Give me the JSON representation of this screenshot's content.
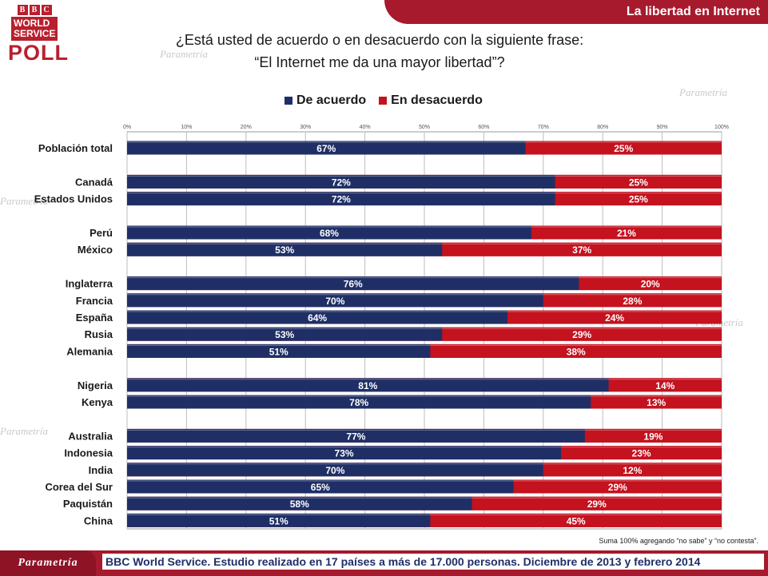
{
  "header": {
    "bbc_letters": [
      "B",
      "B",
      "C"
    ],
    "world_service": "WORLD SERVICE",
    "poll": "POLL",
    "section_title": "La libertad en Internet"
  },
  "question": {
    "line1": "¿Está usted de acuerdo o en desacuerdo con la siguiente frase:",
    "line2": "“El Internet me da una mayor libertad”?"
  },
  "colors": {
    "agree": "#1f2f66",
    "disagree": "#c4121f",
    "accent": "#a7192c"
  },
  "chart_data": {
    "type": "bar",
    "orientation": "horizontal",
    "stacked": true,
    "xlim": [
      0,
      100
    ],
    "x_ticks": [
      "0%",
      "10%",
      "20%",
      "30%",
      "40%",
      "50%",
      "60%",
      "70%",
      "80%",
      "90%",
      "100%"
    ],
    "legend": {
      "placement": "top",
      "entries": [
        "De acuerdo",
        "En desacuerdo"
      ]
    },
    "grid": true,
    "groups": [
      [
        {
          "label": "Población total",
          "agree": 67,
          "disagree": 25
        }
      ],
      [
        {
          "label": "Canadá",
          "agree": 72,
          "disagree": 25
        },
        {
          "label": "Estados Unidos",
          "agree": 72,
          "disagree": 25
        }
      ],
      [
        {
          "label": "Perú",
          "agree": 68,
          "disagree": 21
        },
        {
          "label": "México",
          "agree": 53,
          "disagree": 37
        }
      ],
      [
        {
          "label": "Inglaterra",
          "agree": 76,
          "disagree": 20
        },
        {
          "label": "Francia",
          "agree": 70,
          "disagree": 28
        },
        {
          "label": "España",
          "agree": 64,
          "disagree": 24
        },
        {
          "label": "Rusia",
          "agree": 53,
          "disagree": 29
        },
        {
          "label": "Alemania",
          "agree": 51,
          "disagree": 38
        }
      ],
      [
        {
          "label": "Nigeria",
          "agree": 81,
          "disagree": 14
        },
        {
          "label": "Kenya",
          "agree": 78,
          "disagree": 13
        }
      ],
      [
        {
          "label": "Australia",
          "agree": 77,
          "disagree": 19
        },
        {
          "label": "Indonesia",
          "agree": 73,
          "disagree": 23
        },
        {
          "label": "India",
          "agree": 70,
          "disagree": 12
        },
        {
          "label": "Corea del Sur",
          "agree": 65,
          "disagree": 29
        },
        {
          "label": "Paquistán",
          "agree": 58,
          "disagree": 29
        },
        {
          "label": "China",
          "agree": 51,
          "disagree": 45
        }
      ]
    ]
  },
  "footnote": "Suma 100% agregando “no sabe” y “no contesta”.",
  "source": "BBC World Service. Estudio realizado en 17 países  a más de 17.000 personas. Diciembre de 2013 y febrero 2014",
  "brand": "Parametría"
}
